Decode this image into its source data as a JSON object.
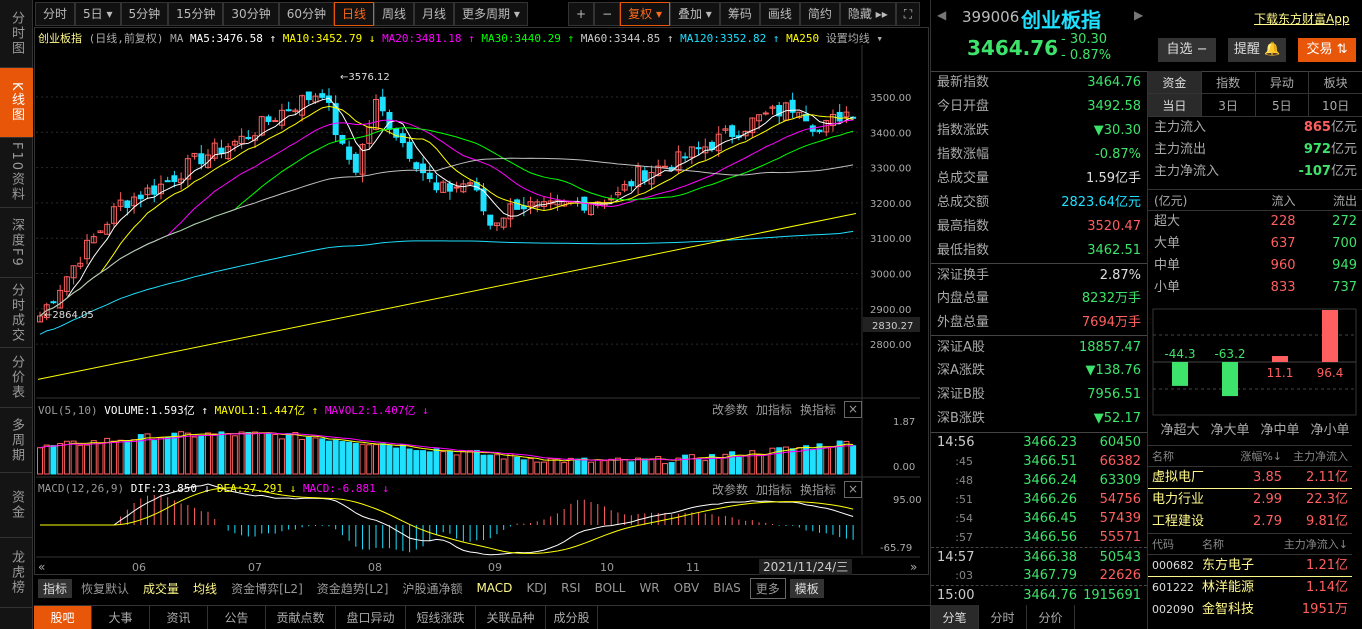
{
  "sidebar": [
    "分时图",
    "K线图",
    "F10资料",
    "深度F9",
    "分时成交",
    "分价表",
    "多周期",
    "资金",
    "龙虎榜"
  ],
  "toolbar": {
    "periods": [
      "分时",
      "5日 ▾",
      "5分钟",
      "15分钟",
      "30分钟",
      "60分钟",
      "日线",
      "周线",
      "月线",
      "更多周期 ▾"
    ],
    "active": "日线",
    "tools": [
      "+",
      "−",
      "复权 ▾",
      "叠加 ▾",
      "筹码",
      "画线",
      "简约",
      "隐藏 ▸▸",
      "⛶"
    ]
  },
  "chart_header": {
    "name": "创业板指",
    "mode": "(日线,前复权)",
    "ma": "MA",
    "ma5": "MA5:3476.58 ↑",
    "ma10": "MA10:3452.79 ↓",
    "ma20": "MA20:3481.18 ↑",
    "ma30": "MA30:3440.29 ↑",
    "ma60": "MA60:3344.85 ↑",
    "ma120": "MA120:3352.82 ↑",
    "ma250": "MA250",
    "settings": "设置均线 ▾"
  },
  "colors": {
    "up": "#ff5f5f",
    "down": "#1ee0ff",
    "ma5": "#ffffff",
    "ma10": "#ffff00",
    "ma20": "#ff00ff",
    "ma30": "#00ff00",
    "ma60": "#c0c0c0",
    "ma120": "#1ee0ff",
    "ma250": "#ffff00",
    "accent": "#e8560a"
  },
  "price_axis": {
    "ticks": [
      "3500.00",
      "3400.00",
      "3300.00",
      "3200.00",
      "3100.00",
      "3000.00",
      "2900.00",
      "2800.00"
    ],
    "current": "2830.27",
    "high_label": "3576.12",
    "low_label": "2864.05"
  },
  "chart_data": {
    "type": "candlestick",
    "x_months": [
      "06",
      "07",
      "08",
      "09",
      "10",
      "11"
    ],
    "current_date": "2021/11/24/三",
    "close_path": [
      [
        0,
        2880
      ],
      [
        6,
        3050
      ],
      [
        12,
        3200
      ],
      [
        18,
        3250
      ],
      [
        24,
        3330
      ],
      [
        30,
        3380
      ],
      [
        36,
        3460
      ],
      [
        42,
        3520
      ],
      [
        45,
        3350
      ],
      [
        47,
        3300
      ],
      [
        50,
        3480
      ],
      [
        53,
        3400
      ],
      [
        56,
        3320
      ],
      [
        59,
        3230
      ],
      [
        64,
        3260
      ],
      [
        67,
        3140
      ],
      [
        71,
        3200
      ],
      [
        75,
        3180
      ],
      [
        80,
        3200
      ],
      [
        86,
        3220
      ],
      [
        89,
        3280
      ],
      [
        95,
        3320
      ],
      [
        101,
        3380
      ],
      [
        107,
        3440
      ],
      [
        113,
        3480
      ],
      [
        116,
        3400
      ],
      [
        119,
        3450
      ],
      [
        121,
        3465
      ]
    ]
  },
  "volume": {
    "head": "VOL(5,10)",
    "volume": "VOLUME:1.593亿 ↑",
    "mavol1": "MAVOL1:1.447亿 ↑",
    "mavol2": "MAVOL2:1.407亿 ↓",
    "ticks": [
      "1.87",
      "0.00"
    ]
  },
  "macd": {
    "head": "MACD(12,26,9)",
    "dif": "DIF:23.850 ↓",
    "dea": "DEA:27.291 ↓",
    "macd": "MACD:-6.881 ↓",
    "ticks": [
      "95.00",
      "-65.79"
    ]
  },
  "panel_actions": [
    "改参数",
    "加指标",
    "换指标",
    "×"
  ],
  "indicator_bar": [
    "指标",
    "恢复默认",
    "成交量",
    "均线",
    "资金博弈[L2]",
    "资金趋势[L2]",
    "沪股通净额",
    "MACD",
    "KDJ",
    "RSI",
    "BOLL",
    "WR",
    "OBV",
    "BIAS",
    "更多",
    "模板"
  ],
  "bottom_tabs": [
    "股吧",
    "大事",
    "资讯",
    "公告",
    "贡献点数",
    "盘口异动",
    "短线涨跌",
    "关联品种",
    "成分股"
  ],
  "quote": {
    "code": "399006",
    "name": "创业板指",
    "price": "3464.76",
    "change": "- 30.30",
    "pct": "- 0.87%",
    "download": "下载东方财富App",
    "watch": "自选 −",
    "alert": "提醒 🔔",
    "trade": "交易 ⇅"
  },
  "stats": [
    [
      "最新指数",
      "3464.76",
      "g"
    ],
    [
      "今日开盘",
      "3492.58",
      "g"
    ],
    [
      "指数涨跌",
      "▼30.30",
      "g"
    ],
    [
      "指数涨幅",
      "-0.87%",
      "g"
    ],
    [
      "总成交量",
      "1.59亿手",
      "w"
    ],
    [
      "总成交额",
      "2823.64亿元",
      "c"
    ],
    [
      "最高指数",
      "3520.47",
      "r"
    ],
    [
      "最低指数",
      "3462.51",
      "g"
    ],
    [
      "深证换手",
      "2.87%",
      "w"
    ],
    [
      "内盘总量",
      "8232万手",
      "g"
    ],
    [
      "外盘总量",
      "7694万手",
      "r"
    ],
    [
      "深证A股",
      "18857.47",
      "g"
    ],
    [
      "深A涨跌",
      "▼138.76",
      "g"
    ],
    [
      "深证B股",
      "7956.51",
      "g"
    ],
    [
      "深B涨跌",
      "▼52.17",
      "g"
    ]
  ],
  "ticks": [
    [
      "14:56",
      "3466.23",
      "60450",
      "g"
    ],
    [
      ":45",
      "3466.51",
      "66382",
      "r"
    ],
    [
      ":48",
      "3466.24",
      "63309",
      "g"
    ],
    [
      ":51",
      "3466.26",
      "54756",
      "r"
    ],
    [
      ":54",
      "3466.45",
      "57439",
      "r"
    ],
    [
      ":57",
      "3466.56",
      "55571",
      "r"
    ],
    [
      "14:57",
      "3466.38",
      "50543",
      "g"
    ],
    [
      ":03",
      "3467.79",
      "22626",
      "r"
    ],
    [
      "15:00",
      "3464.76",
      "1915691",
      "g"
    ]
  ],
  "tick_tabs": [
    "分笔",
    "分时",
    "分价"
  ],
  "fund": {
    "tabs": [
      "资金",
      "指数",
      "异动",
      "板块"
    ],
    "periods": [
      "当日",
      "3日",
      "5日",
      "10日"
    ],
    "flows": [
      [
        "主力流入",
        "865",
        "亿元",
        "r"
      ],
      [
        "主力流出",
        "972",
        "亿元",
        "g"
      ],
      [
        "主力净流入",
        "-107",
        "亿元",
        "g"
      ]
    ],
    "table_head": [
      "(亿元)",
      "流入",
      "流出"
    ],
    "rows": [
      [
        "超大",
        "228",
        "272"
      ],
      [
        "大单",
        "637",
        "700"
      ],
      [
        "中单",
        "960",
        "949"
      ],
      [
        "小单",
        "833",
        "737"
      ]
    ],
    "net": [
      {
        "label": "净超大",
        "value": -44.3
      },
      {
        "label": "净大单",
        "value": -63.2
      },
      {
        "label": "净中单",
        "value": 11.1
      },
      {
        "label": "净小单",
        "value": 96.4
      }
    ]
  },
  "sectors": {
    "head": [
      "名称",
      "涨幅%↓",
      "主力净流入"
    ],
    "rows": [
      [
        "虚拟电厂",
        "3.85",
        "2.11亿"
      ],
      [
        "电力行业",
        "2.99",
        "22.3亿"
      ],
      [
        "工程建设",
        "2.79",
        "9.81亿"
      ]
    ]
  },
  "stocks": {
    "head": [
      "代码",
      "名称",
      "主力净流入↓"
    ],
    "rows": [
      [
        "000682",
        "东方电子",
        "1.21亿"
      ],
      [
        "601222",
        "林洋能源",
        "1.14亿"
      ],
      [
        "002090",
        "金智科技",
        "1951万"
      ]
    ]
  }
}
